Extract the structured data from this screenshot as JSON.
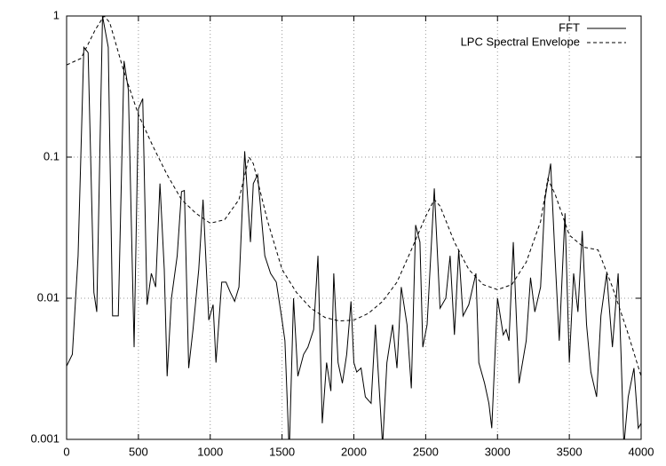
{
  "chart_data": {
    "type": "line",
    "log_y": true,
    "grid": true,
    "legend": "upper right",
    "xlim": [
      0,
      4000
    ],
    "xticks": [
      0,
      500,
      1000,
      1500,
      2000,
      2500,
      3000,
      3500,
      4000
    ],
    "ylim": [
      0.001,
      1
    ],
    "yticks": [
      0.001,
      0.01,
      0.1,
      1
    ],
    "series": [
      {
        "name": "FFT",
        "color": "#000000",
        "line_style": "solid",
        "x": [
          0,
          40,
          80,
          120,
          150,
          190,
          210,
          250,
          290,
          320,
          360,
          400,
          430,
          470,
          500,
          530,
          560,
          590,
          620,
          650,
          680,
          700,
          730,
          770,
          800,
          820,
          850,
          880,
          920,
          950,
          990,
          1020,
          1040,
          1080,
          1110,
          1140,
          1170,
          1200,
          1240,
          1280,
          1300,
          1330,
          1380,
          1420,
          1460,
          1500,
          1520,
          1550,
          1580,
          1610,
          1650,
          1680,
          1720,
          1750,
          1780,
          1810,
          1840,
          1860,
          1890,
          1920,
          1950,
          1980,
          2000,
          2020,
          2050,
          2080,
          2120,
          2150,
          2200,
          2230,
          2270,
          2300,
          2330,
          2370,
          2400,
          2430,
          2460,
          2480,
          2510,
          2560,
          2600,
          2640,
          2670,
          2700,
          2730,
          2760,
          2800,
          2850,
          2870,
          2910,
          2940,
          2960,
          3000,
          3040,
          3060,
          3080,
          3110,
          3150,
          3200,
          3230,
          3260,
          3300,
          3330,
          3370,
          3400,
          3430,
          3470,
          3500,
          3530,
          3560,
          3590,
          3620,
          3650,
          3690,
          3720,
          3760,
          3800,
          3840,
          3860,
          3880,
          3910,
          3950,
          3980,
          4000
        ],
        "values": [
          0.0033,
          0.004,
          0.02,
          0.6,
          0.55,
          0.011,
          0.008,
          1.0,
          0.6,
          0.0075,
          0.0075,
          0.48,
          0.3,
          0.0045,
          0.22,
          0.26,
          0.009,
          0.015,
          0.012,
          0.065,
          0.016,
          0.0028,
          0.01,
          0.02,
          0.057,
          0.058,
          0.0032,
          0.006,
          0.016,
          0.05,
          0.007,
          0.009,
          0.0035,
          0.013,
          0.013,
          0.011,
          0.0095,
          0.012,
          0.11,
          0.025,
          0.065,
          0.075,
          0.02,
          0.015,
          0.013,
          0.007,
          0.005,
          0.0008,
          0.01,
          0.0028,
          0.004,
          0.0045,
          0.006,
          0.02,
          0.0013,
          0.0035,
          0.0022,
          0.015,
          0.0035,
          0.0025,
          0.004,
          0.0095,
          0.0035,
          0.003,
          0.0032,
          0.002,
          0.0018,
          0.0065,
          0.0009,
          0.0035,
          0.0065,
          0.0032,
          0.012,
          0.0065,
          0.0023,
          0.033,
          0.025,
          0.0045,
          0.0065,
          0.06,
          0.0085,
          0.01,
          0.02,
          0.0055,
          0.022,
          0.0075,
          0.009,
          0.015,
          0.0035,
          0.0025,
          0.0018,
          0.0012,
          0.01,
          0.0055,
          0.006,
          0.005,
          0.025,
          0.0025,
          0.005,
          0.014,
          0.008,
          0.012,
          0.05,
          0.09,
          0.02,
          0.005,
          0.04,
          0.0035,
          0.015,
          0.008,
          0.03,
          0.0065,
          0.003,
          0.002,
          0.0075,
          0.015,
          0.0045,
          0.015,
          0.004,
          0.0009,
          0.002,
          0.0032,
          0.0012,
          0.0013
        ]
      },
      {
        "name": "LPC Spectral Envelope",
        "color": "#000000",
        "line_style": "dashed",
        "x": [
          0,
          100,
          200,
          260,
          300,
          400,
          500,
          600,
          700,
          800,
          900,
          1000,
          1100,
          1200,
          1270,
          1300,
          1400,
          1500,
          1600,
          1700,
          1800,
          1900,
          2000,
          2100,
          2200,
          2300,
          2400,
          2500,
          2560,
          2600,
          2700,
          2800,
          2900,
          3000,
          3100,
          3200,
          3300,
          3350,
          3400,
          3500,
          3600,
          3700,
          3800,
          3900,
          4000
        ],
        "values": [
          0.45,
          0.5,
          0.8,
          1.0,
          0.9,
          0.4,
          0.2,
          0.12,
          0.075,
          0.05,
          0.04,
          0.034,
          0.036,
          0.05,
          0.1,
          0.09,
          0.035,
          0.016,
          0.011,
          0.0085,
          0.0073,
          0.0069,
          0.007,
          0.0078,
          0.0095,
          0.013,
          0.022,
          0.038,
          0.05,
          0.045,
          0.025,
          0.016,
          0.0125,
          0.0115,
          0.0125,
          0.018,
          0.035,
          0.07,
          0.055,
          0.028,
          0.023,
          0.022,
          0.012,
          0.006,
          0.0028
        ]
      }
    ]
  }
}
